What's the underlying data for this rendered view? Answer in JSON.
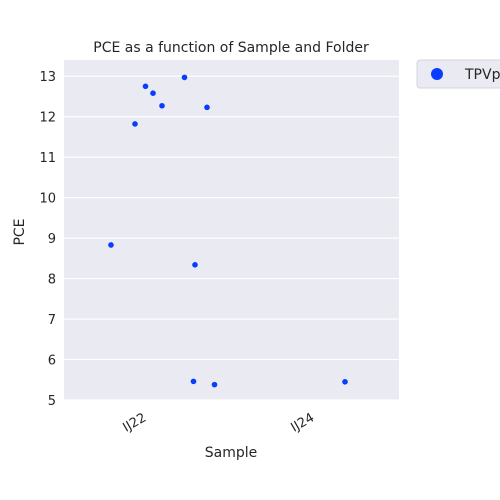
{
  "chart_data": {
    "type": "scatter",
    "title": "PCE as a function of Sample and Folder",
    "xlabel": "Sample",
    "ylabel": "PCE",
    "categories": [
      "IJ22",
      "IJ24"
    ],
    "ylim": [
      5,
      13.4
    ],
    "yticks": [
      5,
      6,
      7,
      8,
      9,
      10,
      11,
      12,
      13
    ],
    "grid": true,
    "legend_position": "outside-top-right",
    "series": [
      {
        "name": "TPVp",
        "color": "#0a3cff",
        "points": [
          {
            "category": "IJ22",
            "jitter": -0.24,
            "y": 8.83
          },
          {
            "category": "IJ22",
            "jitter": -0.08,
            "y": 11.82
          },
          {
            "category": "IJ22",
            "jitter": -0.01,
            "y": 12.75
          },
          {
            "category": "IJ22",
            "jitter": 0.04,
            "y": 12.58
          },
          {
            "category": "IJ22",
            "jitter": 0.1,
            "y": 12.27
          },
          {
            "category": "IJ22",
            "jitter": 0.25,
            "y": 12.97
          },
          {
            "category": "IJ22",
            "jitter": 0.32,
            "y": 8.34
          },
          {
            "category": "IJ22",
            "jitter": 0.31,
            "y": 5.46
          },
          {
            "category": "IJ22",
            "jitter": 0.4,
            "y": 12.23
          },
          {
            "category": "IJ22",
            "jitter": 0.45,
            "y": 5.38
          },
          {
            "category": "IJ24",
            "jitter": 0.2,
            "y": 5.45
          }
        ]
      }
    ]
  }
}
